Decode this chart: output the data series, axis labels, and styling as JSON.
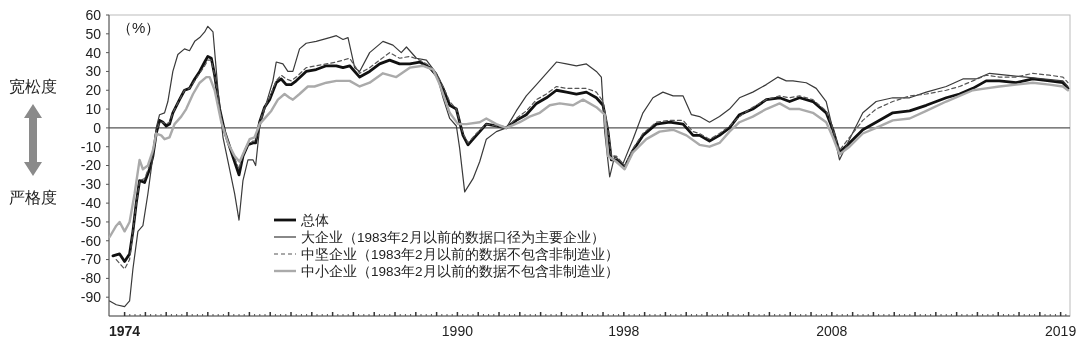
{
  "chart_data": {
    "type": "line",
    "ylabel": "（%）",
    "annotations": [
      "宽松度",
      "严格度"
    ],
    "legend": "bottom left",
    "xlim": [
      1973.25,
      2019.45
    ],
    "ylim": [
      -100,
      60
    ],
    "xticks": [
      {
        "value": 1974,
        "label": "1974"
      },
      {
        "value": 1975,
        "label": null
      },
      {
        "value": 1976,
        "label": null
      },
      {
        "value": 1977,
        "label": null
      },
      {
        "value": 1978,
        "label": null
      },
      {
        "value": 1979,
        "label": null
      },
      {
        "value": 1980,
        "label": null
      },
      {
        "value": 1981,
        "label": null
      },
      {
        "value": 1982,
        "label": null
      },
      {
        "value": 1983,
        "label": null
      },
      {
        "value": 1984,
        "label": null
      },
      {
        "value": 1985,
        "label": null
      },
      {
        "value": 1986,
        "label": null
      },
      {
        "value": 1987,
        "label": null
      },
      {
        "value": 1988,
        "label": null
      },
      {
        "value": 1989,
        "label": null
      },
      {
        "value": 1990,
        "label": "1990"
      },
      {
        "value": 1991,
        "label": null
      },
      {
        "value": 1992,
        "label": null
      },
      {
        "value": 1993,
        "label": null
      },
      {
        "value": 1994,
        "label": null
      },
      {
        "value": 1995,
        "label": null
      },
      {
        "value": 1996,
        "label": null
      },
      {
        "value": 1997,
        "label": null
      },
      {
        "value": 1998,
        "label": "1998"
      },
      {
        "value": 1999,
        "label": null
      },
      {
        "value": 2000,
        "label": null
      },
      {
        "value": 2001,
        "label": null
      },
      {
        "value": 2002,
        "label": null
      },
      {
        "value": 2003,
        "label": null
      },
      {
        "value": 2004,
        "label": null
      },
      {
        "value": 2005,
        "label": null
      },
      {
        "value": 2006,
        "label": null
      },
      {
        "value": 2007,
        "label": null
      },
      {
        "value": 2008,
        "label": "2008"
      },
      {
        "value": 2009,
        "label": null
      },
      {
        "value": 2010,
        "label": null
      },
      {
        "value": 2011,
        "label": null
      },
      {
        "value": 2012,
        "label": null
      },
      {
        "value": 2013,
        "label": null
      },
      {
        "value": 2014,
        "label": null
      },
      {
        "value": 2015,
        "label": null
      },
      {
        "value": 2016,
        "label": null
      },
      {
        "value": 2017,
        "label": null
      },
      {
        "value": 2018,
        "label": null
      },
      {
        "value": 2019,
        "label": "2019"
      }
    ],
    "yticks": [
      -90,
      -80,
      -70,
      -60,
      -50,
      -40,
      -30,
      -20,
      -10,
      0,
      10,
      20,
      30,
      40,
      50,
      60
    ],
    "ref_lines": [
      {
        "axis": "y",
        "value": 0,
        "color": "#555555"
      }
    ],
    "series": [
      {
        "name": "总体",
        "color": "#111111",
        "line_style": "solid",
        "x": [
          1973.44,
          1973.76,
          1974,
          1974.24,
          1974.4,
          1974.56,
          1974.72,
          1974.96,
          1975.2,
          1975.36,
          1975.52,
          1975.68,
          1975.84,
          1976,
          1976.16,
          1976.32,
          1976.64,
          1976.88,
          1977.12,
          1977.37,
          1977.61,
          1977.85,
          1978,
          1978.17,
          1978.33,
          1978.57,
          1978.81,
          1979.05,
          1979.29,
          1979.5,
          1979.69,
          1979.93,
          1980.17,
          1980.3,
          1980.49,
          1980.73,
          1980.97,
          1981.29,
          1981.53,
          1981.77,
          1982.01,
          1982.25,
          1982.73,
          1983.21,
          1983.7,
          1984.18,
          1984.5,
          1984.82,
          1985.3,
          1985.78,
          1986.26,
          1986.74,
          1987.22,
          1987.71,
          1988.19,
          1988.67,
          1988.99,
          1989.31,
          1989.63,
          1989.95,
          1990.27,
          1990.51,
          1990.91,
          1991.39,
          1991.87,
          1992.35,
          1992.83,
          1993.31,
          1993.8,
          1994.28,
          1994.76,
          1995.24,
          1995.72,
          1996.2,
          1996.68,
          1997,
          1997.24,
          1997.4,
          1997.64,
          1998.04,
          1998.44,
          1998.92,
          1999.56,
          2000.2,
          2000.85,
          2001.33,
          2001.64,
          2002.12,
          2002.6,
          2003.08,
          2003.56,
          2004.2,
          2004.85,
          2005.49,
          2005.97,
          2006.45,
          2007.09,
          2007.73,
          2008.05,
          2008.37,
          2008.85,
          2009.49,
          2010.13,
          2010.93,
          2011.74,
          2012.54,
          2013.5,
          2014.14,
          2014.78,
          2015.42,
          2016.05,
          2016.86,
          2017.66,
          2018.46,
          2019.11,
          2019.35
        ],
        "values": [
          -68,
          -67,
          -71,
          -67,
          -55,
          -40,
          -28,
          -29,
          -22,
          -15,
          -3,
          4,
          3,
          1,
          2,
          8,
          15,
          20,
          21,
          26,
          30,
          35,
          38,
          37,
          28,
          10,
          -2,
          -10,
          -18,
          -25,
          -15,
          -9,
          -8,
          -8,
          3,
          11,
          15,
          24,
          26,
          23,
          23,
          25,
          30,
          31,
          33,
          33,
          32,
          33,
          27,
          30,
          34,
          36,
          34,
          34,
          35,
          32,
          28,
          21,
          12,
          10,
          -4,
          -9,
          -4,
          2,
          1,
          0,
          4,
          7,
          13,
          16,
          20,
          19,
          18,
          19,
          16,
          12,
          -2,
          -17,
          -17,
          -21,
          -12,
          -4,
          2,
          3,
          2,
          -4,
          -4,
          -7,
          -4,
          0,
          7,
          10,
          15,
          16,
          14,
          16,
          14,
          8,
          -1,
          -13,
          -8,
          -1,
          3,
          8,
          9,
          12,
          16,
          18,
          21,
          25,
          25,
          24,
          26,
          25,
          24,
          21
        ]
      },
      {
        "name": "大企业（1983年2月以前的数据口径为主要企业）",
        "color": "#3a3a3a",
        "line_style": "solid",
        "x": [
          1973.28,
          1973.6,
          1974,
          1974.24,
          1974.4,
          1974.64,
          1974.88,
          1975.12,
          1975.36,
          1975.52,
          1975.68,
          1975.92,
          1976.08,
          1976.32,
          1976.56,
          1976.88,
          1977.12,
          1977.37,
          1977.61,
          1977.85,
          1978,
          1978.25,
          1978.49,
          1978.73,
          1979.05,
          1979.29,
          1979.5,
          1979.69,
          1979.93,
          1980.17,
          1980.3,
          1980.49,
          1980.81,
          1981.13,
          1981.29,
          1981.61,
          1981.85,
          1982.09,
          1982.41,
          1982.73,
          1983.21,
          1983.86,
          1984.18,
          1984.5,
          1984.74,
          1985.06,
          1985.3,
          1985.78,
          1986.42,
          1986.9,
          1987.3,
          1987.55,
          1988.03,
          1988.51,
          1988.99,
          1989.31,
          1989.63,
          1989.95,
          1990.11,
          1990.35,
          1990.75,
          1991.07,
          1991.39,
          1991.87,
          1992.35,
          1992.83,
          1993.31,
          1993.8,
          1994.28,
          1994.76,
          1995.24,
          1995.72,
          1996.2,
          1996.68,
          1996.92,
          1997.08,
          1997.32,
          1997.56,
          1997.96,
          1998.44,
          1998.92,
          1999.4,
          1999.88,
          2000.37,
          2000.85,
          2001.25,
          2001.64,
          2002.12,
          2002.6,
          2003.08,
          2003.56,
          2004.2,
          2004.85,
          2005.41,
          2005.81,
          2006.13,
          2006.77,
          2007.25,
          2007.73,
          2008.05,
          2008.37,
          2008.85,
          2009.49,
          2010.13,
          2010.93,
          2011.74,
          2012.54,
          2013.5,
          2014.3,
          2014.93,
          2015.58,
          2016.38,
          2017.34,
          2018.14,
          2019.11,
          2019.35
        ],
        "values": [
          -92,
          -94,
          -95,
          -92,
          -75,
          -55,
          -52,
          -35,
          -15,
          0,
          7,
          8,
          14,
          30,
          39,
          42,
          41,
          46,
          48,
          51,
          54,
          51,
          20,
          -5,
          -22,
          -35,
          -49,
          -28,
          -17,
          -17,
          -20,
          0,
          13,
          25,
          35,
          34,
          30,
          30,
          42,
          45,
          46,
          48,
          49,
          47,
          48,
          32,
          30,
          40,
          46,
          44,
          40,
          43,
          37,
          36,
          29,
          16,
          5,
          1,
          -11,
          -34,
          -27,
          -18,
          -6,
          -2,
          0,
          9,
          17,
          23,
          29,
          35,
          34,
          33,
          34,
          30,
          27,
          -2,
          -26,
          -15,
          -19,
          -6,
          8,
          16,
          19,
          17,
          17,
          7,
          6,
          3,
          6,
          10,
          16,
          19,
          23,
          27,
          25,
          25,
          24,
          21,
          14,
          -1,
          -17,
          -6,
          8,
          14,
          16,
          16,
          19,
          22,
          26,
          26,
          29,
          28,
          27,
          26,
          25,
          22
        ]
      },
      {
        "name": "中坚企业（1983年2月以前的数据不包含非制造业）",
        "color": "#555555",
        "line_style": "dashed",
        "x": [
          1973.6,
          1973.76,
          1974,
          1974.24,
          1974.4,
          1974.56,
          1974.72,
          1974.96,
          1975.2,
          1975.36,
          1975.52,
          1975.68,
          1975.84,
          1976,
          1976.16,
          1976.32,
          1976.64,
          1976.88,
          1977.12,
          1977.37,
          1977.61,
          1977.85,
          1978,
          1978.17,
          1978.33,
          1978.57,
          1978.81,
          1979.05,
          1979.29,
          1979.5,
          1979.69,
          1979.93,
          1980.17,
          1980.3,
          1980.49,
          1980.73,
          1980.97,
          1981.29,
          1981.53,
          1981.77,
          1982.01,
          1982.25,
          1982.73,
          1983.21,
          1983.7,
          1984.18,
          1984.5,
          1984.82,
          1985.3,
          1985.78,
          1986.26,
          1986.74,
          1987.22,
          1987.71,
          1988.19,
          1988.67,
          1988.99,
          1989.31,
          1989.63,
          1989.95,
          1990.27,
          1990.51,
          1990.91,
          1991.39,
          1991.87,
          1992.35,
          1992.83,
          1993.31,
          1993.8,
          1994.28,
          1994.76,
          1995.24,
          1995.72,
          1996.2,
          1996.68,
          1997,
          1997.24,
          1997.4,
          1997.64,
          1998.04,
          1998.44,
          1998.92,
          1999.56,
          2000.2,
          2000.85,
          2001.33,
          2001.64,
          2002.12,
          2002.6,
          2003.08,
          2003.56,
          2004.2,
          2004.85,
          2005.49,
          2005.97,
          2006.45,
          2007.09,
          2007.73,
          2008.05,
          2008.37,
          2008.85,
          2009.49,
          2010.13,
          2010.93,
          2011.74,
          2012.54,
          2013.5,
          2014.14,
          2014.78,
          2015.42,
          2016.05,
          2016.86,
          2017.66,
          2018.46,
          2019.11,
          2019.35
        ],
        "values": [
          -70,
          -72,
          -75,
          -70,
          -55,
          -40,
          -28,
          -27,
          -20,
          -13,
          -2,
          3,
          3,
          2,
          3,
          8,
          15,
          20,
          21,
          25,
          29,
          33,
          36,
          36,
          28,
          10,
          -3,
          -10,
          -16,
          -22,
          -14,
          -9,
          -7,
          -7,
          3,
          11,
          16,
          25,
          28,
          26,
          25,
          27,
          32,
          33,
          34,
          35,
          36,
          37,
          29,
          32,
          36,
          40,
          37,
          38,
          36,
          33,
          29,
          22,
          14,
          10,
          -3,
          -8,
          -3,
          2,
          1,
          0,
          5,
          9,
          15,
          18,
          22,
          21,
          21,
          21,
          19,
          14,
          -1,
          -15,
          -15,
          -20,
          -11,
          -3,
          3,
          4,
          4,
          -2,
          -3,
          -6,
          -3,
          1,
          6,
          11,
          15,
          17,
          16,
          17,
          15,
          9,
          0,
          -12,
          -5,
          4,
          10,
          14,
          17,
          18,
          20,
          22,
          25,
          28,
          27,
          27,
          29,
          28,
          27,
          24
        ]
      },
      {
        "name": "中小企业（1983年2月以前的数据不包含非制造业）",
        "color": "#aaaaaa",
        "line_style": "solid",
        "x": [
          1973.28,
          1973.6,
          1973.76,
          1974,
          1974.24,
          1974.48,
          1974.72,
          1974.88,
          1975.12,
          1975.36,
          1975.52,
          1975.76,
          1975.92,
          1976.16,
          1976.4,
          1976.72,
          1976.96,
          1977.29,
          1977.61,
          1977.93,
          1978.09,
          1978.33,
          1978.65,
          1978.97,
          1979.29,
          1979.53,
          1979.77,
          1980.01,
          1980.25,
          1980.49,
          1980.81,
          1981.05,
          1981.37,
          1981.69,
          1981.93,
          1982.09,
          1982.41,
          1982.81,
          1983.13,
          1983.7,
          1984.18,
          1984.82,
          1985.3,
          1985.78,
          1986.42,
          1987.06,
          1987.71,
          1988.35,
          1988.83,
          1989.15,
          1989.63,
          1990.03,
          1990.43,
          1991.07,
          1991.39,
          1991.87,
          1992.35,
          1993,
          1993.47,
          1993.96,
          1994.44,
          1994.92,
          1995.56,
          1996.04,
          1996.68,
          1997.08,
          1997.24,
          1997.64,
          1998.04,
          1998.44,
          1999.08,
          1999.72,
          2000.37,
          2001.01,
          2001.64,
          2002.12,
          2002.6,
          2003.08,
          2003.56,
          2004.2,
          2004.85,
          2005.49,
          2005.97,
          2006.45,
          2007.09,
          2007.73,
          2008.05,
          2008.37,
          2008.85,
          2009.49,
          2010.13,
          2010.93,
          2011.74,
          2012.54,
          2013.5,
          2014.14,
          2014.78,
          2015.42,
          2016.05,
          2016.86,
          2017.66,
          2018.46,
          2019.11,
          2019.35
        ],
        "values": [
          -58,
          -52,
          -50,
          -55,
          -50,
          -35,
          -17,
          -22,
          -20,
          -12,
          -3,
          -4,
          -6,
          -5,
          2,
          6,
          10,
          18,
          24,
          27,
          27,
          20,
          3,
          -8,
          -15,
          -18,
          -12,
          -6,
          -5,
          2,
          6,
          9,
          15,
          18,
          16,
          15,
          18,
          22,
          22,
          24,
          25,
          25,
          22,
          24,
          29,
          27,
          32,
          33,
          31,
          23,
          8,
          2,
          2,
          3,
          5,
          2,
          0,
          3,
          6,
          8,
          12,
          13,
          12,
          15,
          11,
          7,
          -15,
          -18,
          -22,
          -13,
          -6,
          -2,
          -1,
          -4,
          -9,
          -10,
          -8,
          -2,
          3,
          6,
          10,
          13,
          10,
          10,
          8,
          3,
          -5,
          -14,
          -10,
          -3,
          0,
          4,
          5,
          9,
          14,
          17,
          20,
          21,
          22,
          23,
          24,
          23,
          22,
          20
        ]
      }
    ]
  }
}
